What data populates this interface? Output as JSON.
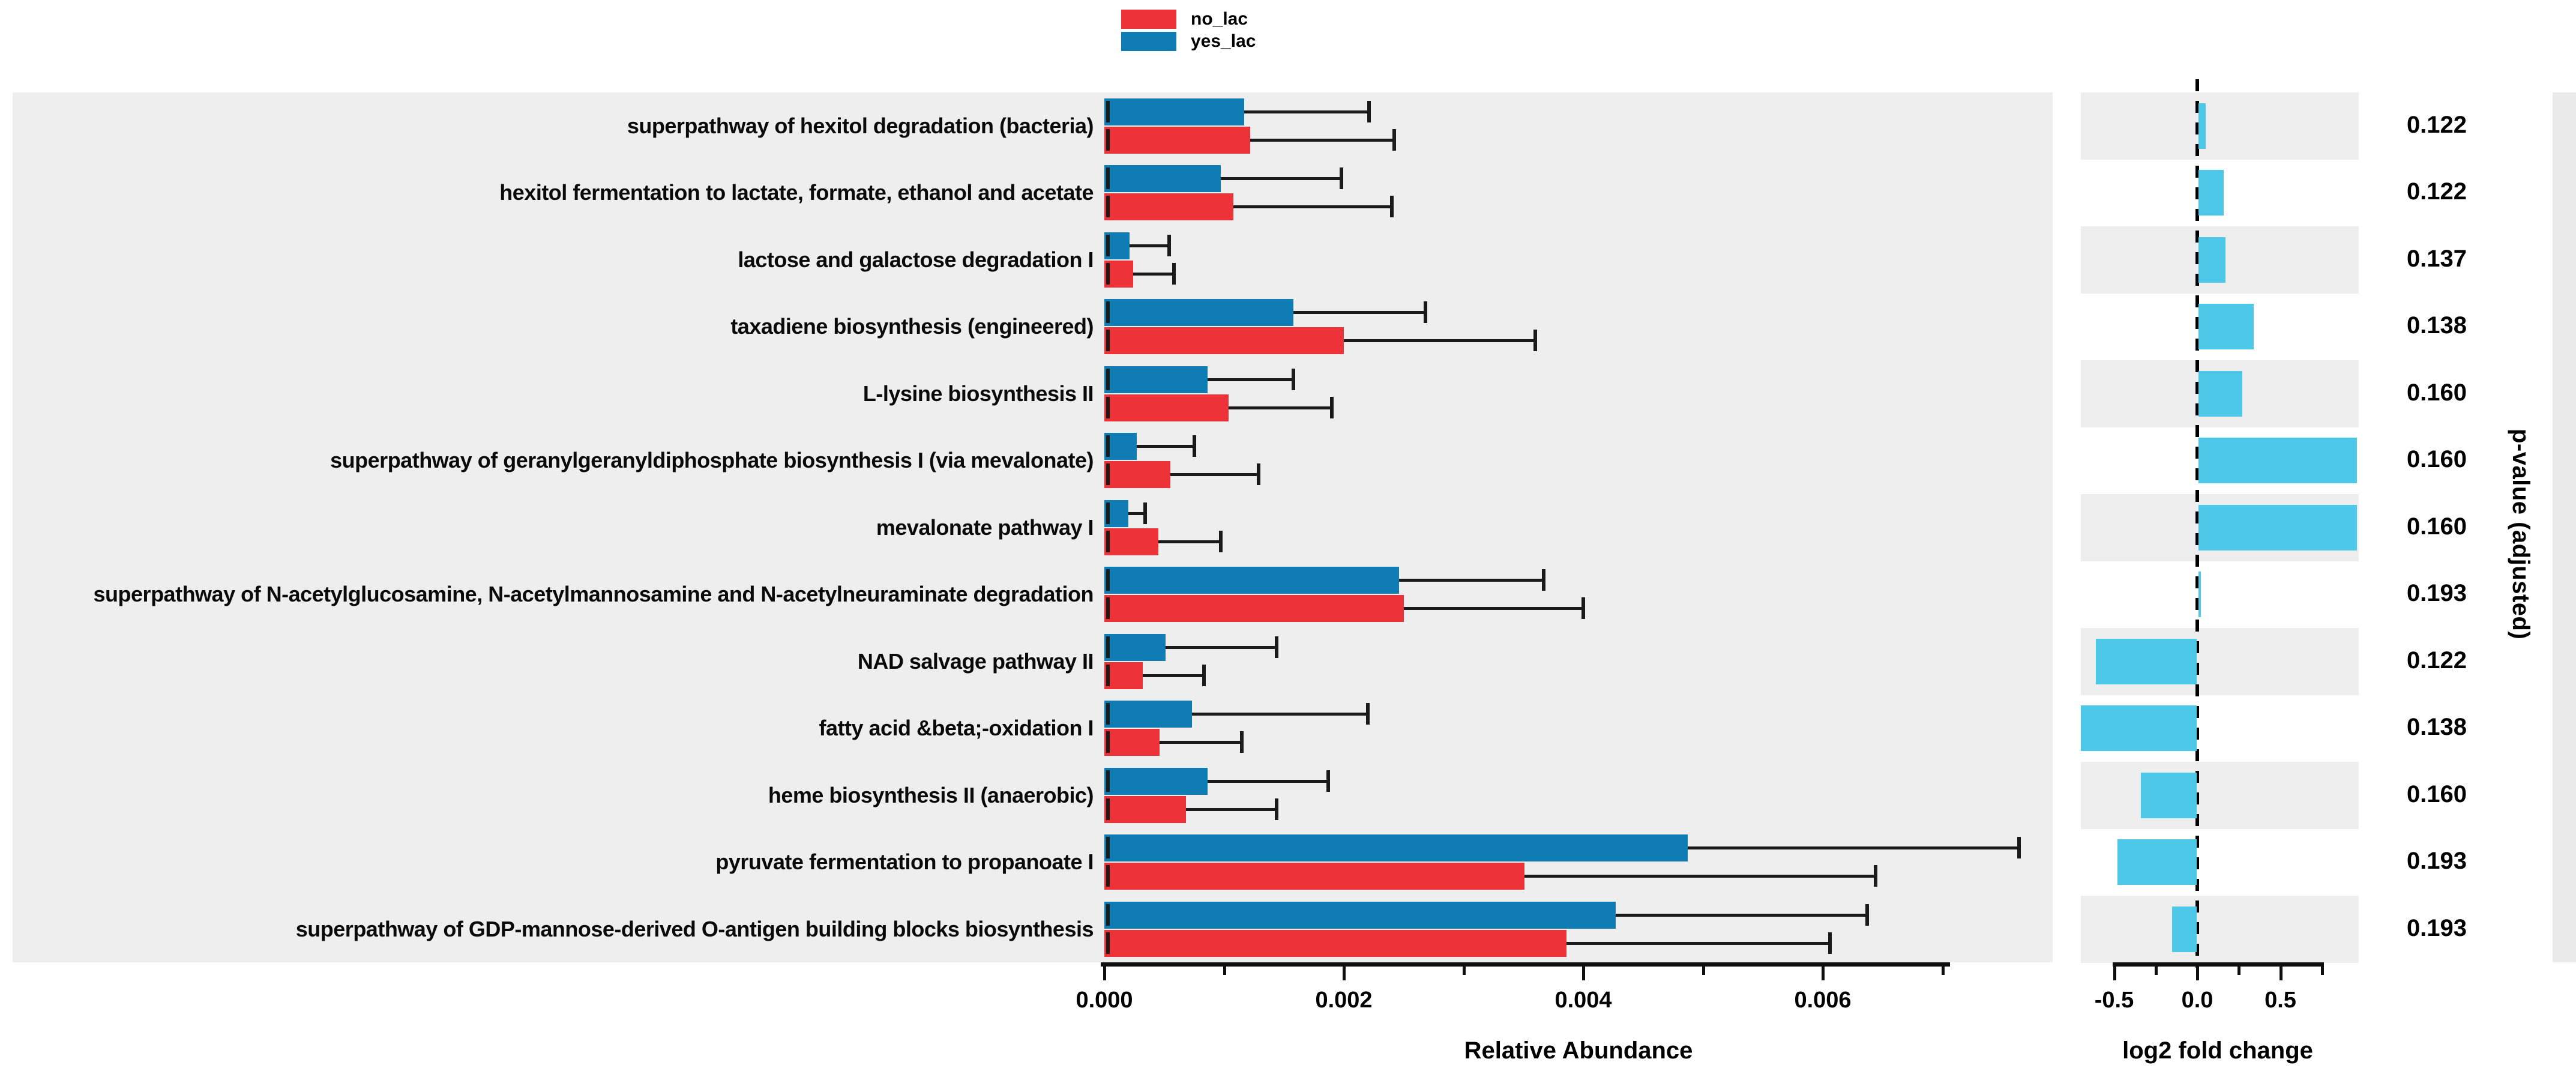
{
  "legend": {
    "items": [
      {
        "label": "no_lac",
        "color": "#EE3338"
      },
      {
        "label": "yes_lac",
        "color": "#0F7DB4"
      }
    ]
  },
  "colors": {
    "no_lac_bar": "#EE3338",
    "yes_lac_bar": "#0F7DB4",
    "fold_change_bar": "#4DC8E9",
    "panel_background": "#EEEEEE",
    "stripe_grey": "#EEEEEE",
    "stripe_white": "#FFFFFF",
    "right_strip": "#EAEAEA",
    "error_bar": "#1a1a1a",
    "zero_line": "#000000"
  },
  "chart_data": {
    "type": "bar",
    "orientation": "horizontal",
    "title": "",
    "categories": [
      "superpathway of hexitol degradation (bacteria)",
      "hexitol fermentation to lactate, formate, ethanol and acetate",
      "lactose and galactose degradation I",
      "taxadiene biosynthesis (engineered)",
      "L-lysine biosynthesis II",
      "superpathway of geranylgeranyldiphosphate biosynthesis I (via mevalonate)",
      "mevalonate pathway I",
      "superpathway of N-acetylglucosamine, N-acetylmannosamine and N-acetylneuraminate degradation",
      "NAD salvage pathway II",
      "fatty acid &beta;-oxidation I",
      "heme biosynthesis II (anaerobic)",
      "pyruvate fermentation to propanoate I",
      "superpathway of GDP-mannose-derived O-antigen building blocks biosynthesis"
    ],
    "series": [
      {
        "name": "no_lac",
        "values": [
          0.00122,
          0.00108,
          0.00024,
          0.002,
          0.00104,
          0.00055,
          0.00045,
          0.0025,
          0.00032,
          0.00046,
          0.00068,
          0.00351,
          0.00386
        ],
        "error_upper": [
          0.00242,
          0.0024,
          0.00058,
          0.0036,
          0.0019,
          0.00129,
          0.00097,
          0.004,
          0.00083,
          0.00115,
          0.00144,
          0.00644,
          0.00606
        ]
      },
      {
        "name": "yes_lac",
        "values": [
          0.00117,
          0.00097,
          0.00021,
          0.00158,
          0.00086,
          0.00027,
          0.0002,
          0.00246,
          0.00051,
          0.00073,
          0.00086,
          0.00487,
          0.00427
        ],
        "error_upper": [
          0.00221,
          0.00198,
          0.00054,
          0.00268,
          0.00158,
          0.00075,
          0.00034,
          0.00367,
          0.00144,
          0.0022,
          0.00187,
          0.00764,
          0.00637
        ]
      }
    ],
    "log2_fold_change": [
      0.05,
      0.16,
      0.17,
      0.34,
      0.27,
      0.96,
      0.96,
      0.02,
      -0.61,
      -0.7,
      -0.34,
      -0.48,
      -0.15
    ],
    "p_values": [
      "0.122",
      "0.122",
      "0.137",
      "0.138",
      "0.160",
      "0.160",
      "0.160",
      "0.193",
      "0.122",
      "0.138",
      "0.160",
      "0.193",
      "0.193"
    ],
    "abundance_axis": {
      "label": "Relative Abundance",
      "tick_labels": [
        "0.000",
        "0.002",
        "0.004",
        "0.006"
      ],
      "major_ticks": [
        0.0,
        0.002,
        0.004,
        0.006
      ],
      "minor_ticks": [
        0.001,
        0.003,
        0.005,
        0.007
      ],
      "range": [
        0,
        0.0079
      ],
      "grid": false
    },
    "fc_axis": {
      "label": "log2 fold change",
      "tick_labels": [
        "-0.5",
        "0.0",
        "0.5"
      ],
      "major_ticks": [
        -0.5,
        0.0,
        0.5
      ],
      "minor_ticks": [
        -0.25,
        0.25,
        0.75
      ],
      "range": [
        -0.7,
        0.97
      ],
      "zero_line": "dashed"
    },
    "right_label": "p-value (adjusted)",
    "legend_position": "top-center"
  }
}
